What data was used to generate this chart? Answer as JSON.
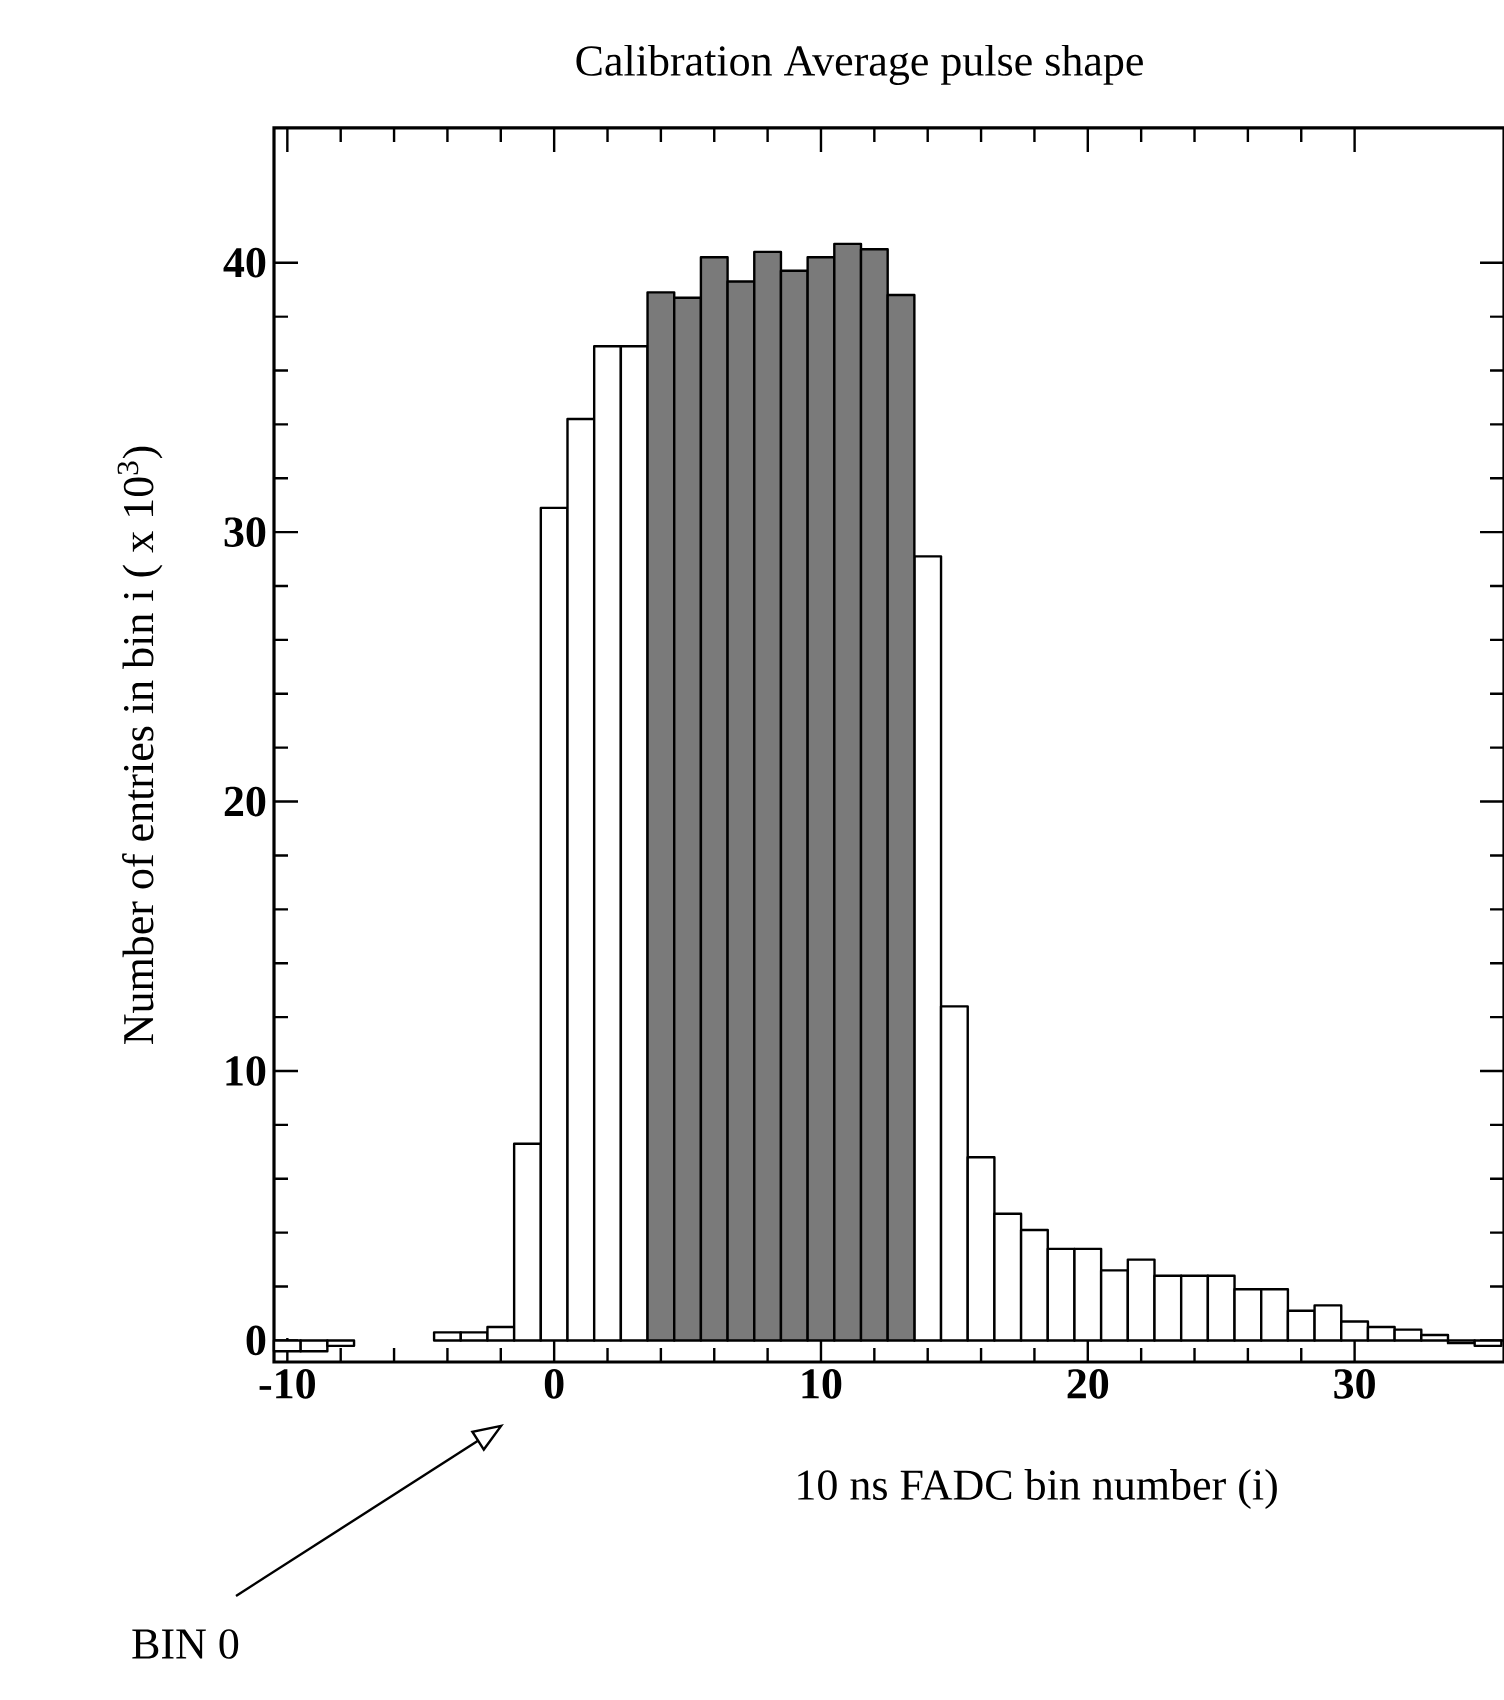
{
  "chart_data": {
    "type": "histogram",
    "title": "Calibration  Average pulse shape",
    "xlabel": "10 ns FADC bin number (i)",
    "ylabel": "Number of entries in bin i ( x 10$^{3}$)",
    "annotations": [
      "BIN 0"
    ],
    "bins": [
      -10.5,
      -9.5,
      -8.5,
      -7.5,
      -6.5,
      -5.5,
      -4.5,
      -3.5,
      -2.5,
      -1.5,
      -0.5,
      0.5,
      1.5,
      2.5,
      3.5,
      4.5,
      5.5,
      6.5,
      7.5,
      8.5,
      9.5,
      10.5,
      11.5,
      12.5,
      13.5,
      14.5,
      15.5,
      16.5,
      17.5,
      18.5,
      19.5,
      20.5,
      21.5,
      22.5,
      23.5,
      24.5,
      25.5,
      26.5,
      27.5,
      28.5,
      29.5,
      30.5,
      31.5,
      32.5,
      33.5,
      34.5,
      35.5
    ],
    "series": [
      {
        "color": "#ffffff",
        "values": [
          -0.4,
          -0.4,
          -0.2,
          0.0,
          0.0,
          0.0,
          0.3,
          0.3,
          0.5,
          7.3,
          30.9,
          34.2,
          36.9,
          36.9,
          null,
          null,
          null,
          null,
          null,
          null,
          null,
          null,
          null,
          null,
          29.1,
          12.4,
          6.8,
          4.7,
          4.1,
          3.4,
          3.4,
          2.6,
          3.0,
          2.4,
          2.4,
          2.4,
          1.9,
          1.9,
          1.1,
          1.3,
          0.7,
          0.5,
          0.4,
          0.2,
          -0.1,
          -0.2
        ]
      },
      {
        "color": "#7a7a7a",
        "values": [
          null,
          null,
          null,
          null,
          null,
          null,
          null,
          null,
          null,
          null,
          null,
          null,
          null,
          null,
          38.9,
          38.7,
          40.2,
          39.3,
          40.4,
          39.7,
          40.2,
          40.7,
          40.5,
          38.8,
          null,
          null,
          null,
          null,
          null,
          null,
          null,
          null,
          null,
          null,
          null,
          null,
          null,
          null,
          null,
          null,
          null,
          null,
          null,
          null,
          null,
          null
        ]
      }
    ],
    "xlim": [
      -10.5,
      35.6
    ],
    "ylim": [
      -0.8,
      45
    ],
    "xticks": [
      -10,
      0,
      10,
      20,
      30
    ],
    "yticks": [
      0,
      10,
      20,
      30,
      40
    ]
  }
}
